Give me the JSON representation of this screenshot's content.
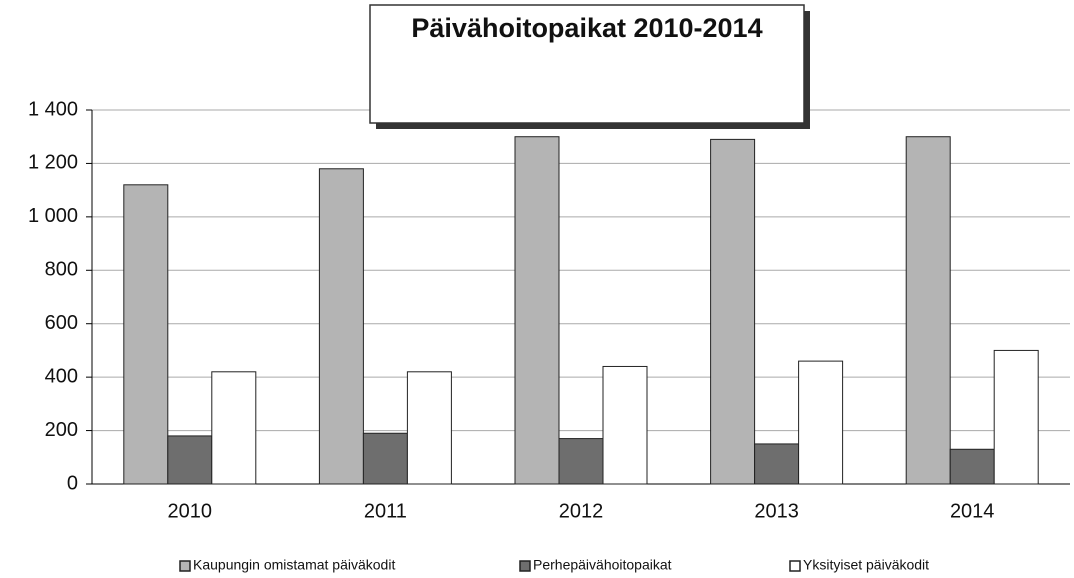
{
  "chart_data": {
    "type": "bar",
    "title": "Päivähoitopaikat 2010-2014",
    "categories": [
      "2010",
      "2011",
      "2012",
      "2013",
      "2014"
    ],
    "series": [
      {
        "name": "Kaupungin omistamat päiväkodit",
        "color": "#b4b4b4",
        "values": [
          1120,
          1180,
          1300,
          1290,
          1300
        ]
      },
      {
        "name": "Perhepäivähoitopaikat",
        "color": "#6e6e6e",
        "values": [
          180,
          190,
          170,
          150,
          130
        ]
      },
      {
        "name": "Yksityiset päiväkodit",
        "color": "#ffffff",
        "values": [
          420,
          420,
          440,
          460,
          500
        ]
      }
    ],
    "ylim": [
      0,
      1400
    ],
    "yticks": [
      0,
      200,
      400,
      600,
      800,
      {
        "value": 1000,
        "label": "1 000"
      },
      {
        "value": 1200,
        "label": "1 200"
      },
      {
        "value": 1400,
        "label": "1 400"
      }
    ],
    "grid": true,
    "legend": "bottom"
  }
}
